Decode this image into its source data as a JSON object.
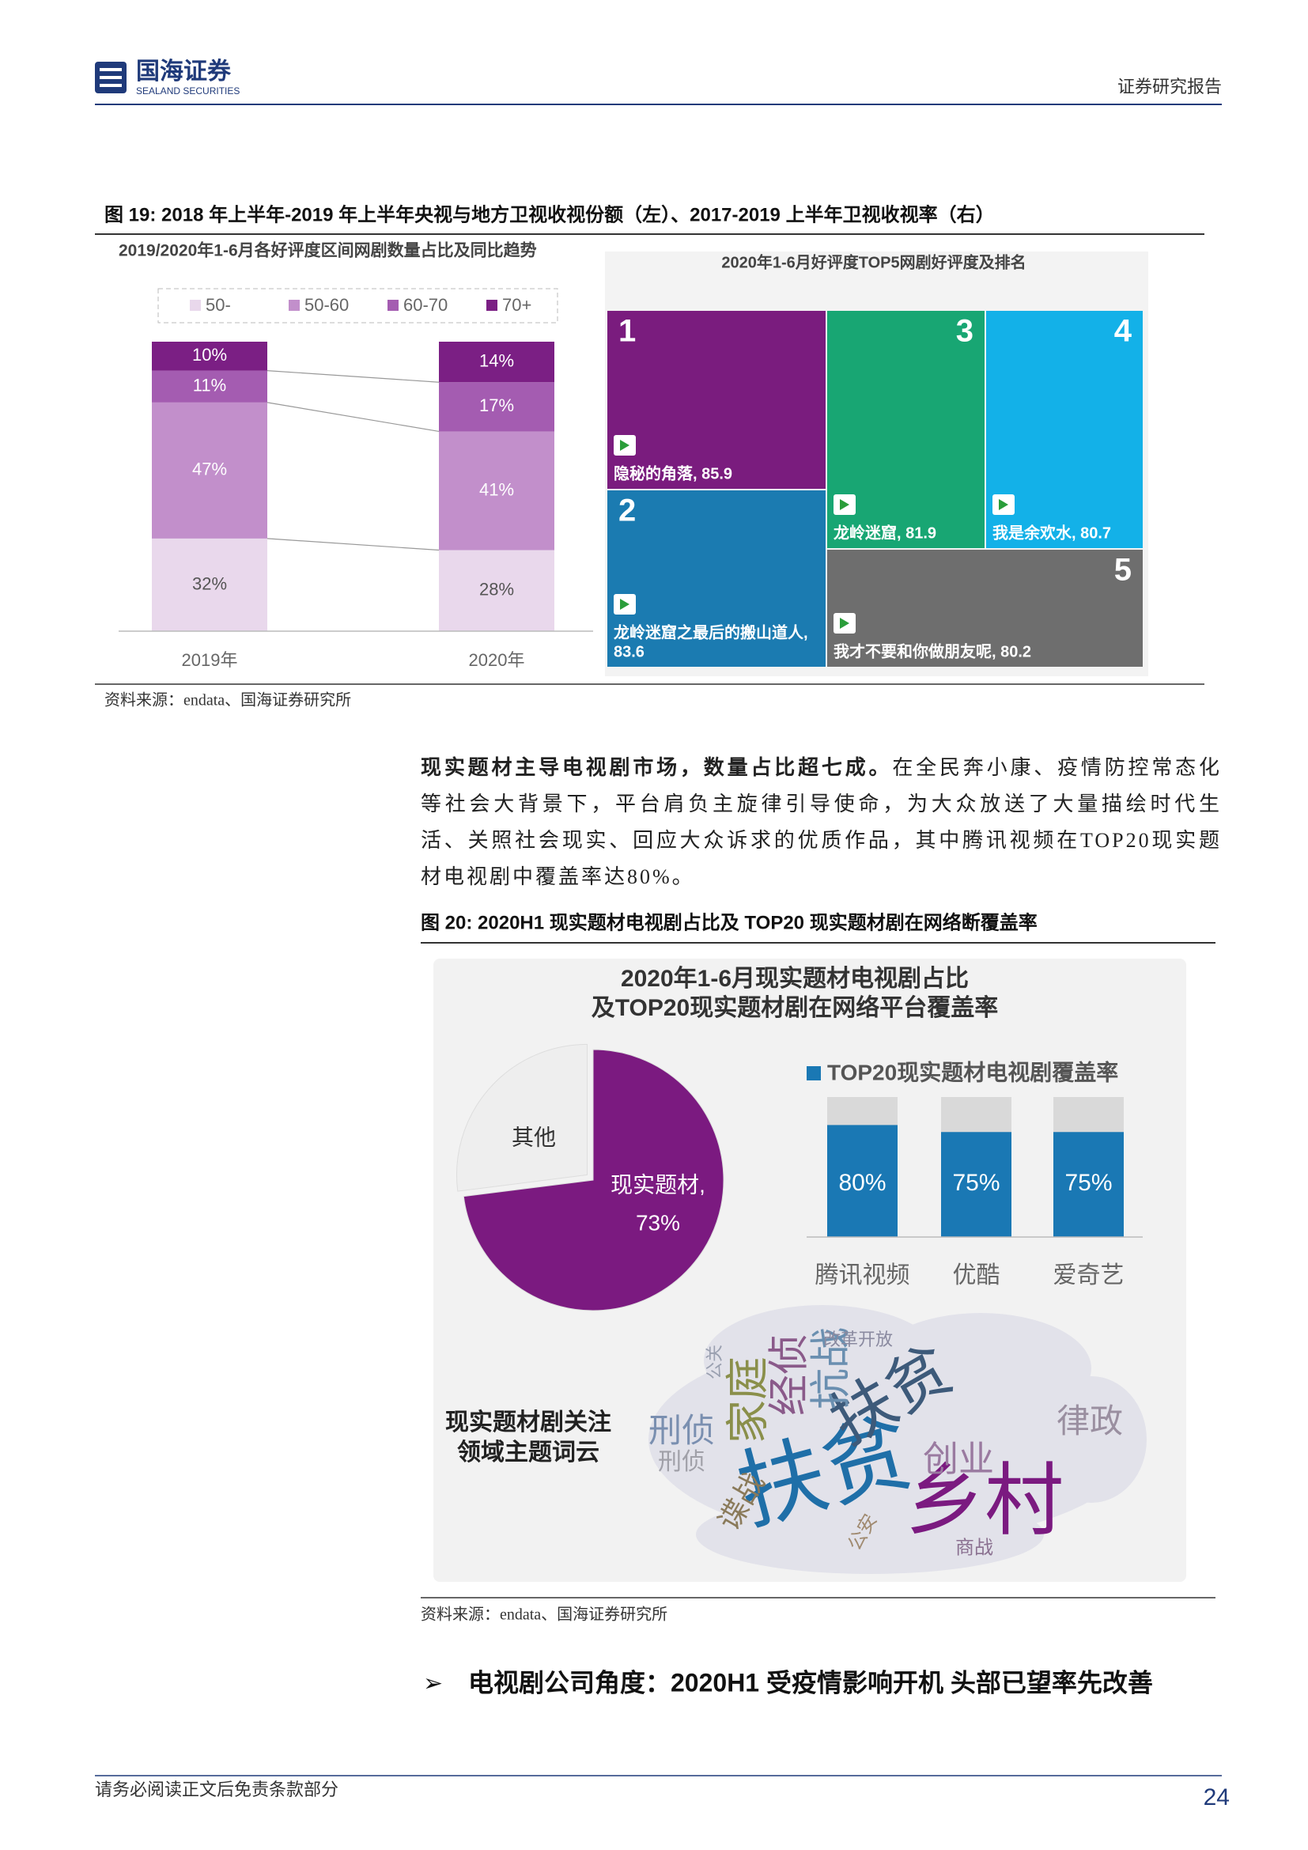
{
  "header": {
    "logo_cn": "国海证券",
    "logo_en": "SEALAND SECURITIES",
    "report_type": "证券研究报告"
  },
  "figure19": {
    "caption": "图 19: 2018 年上半年-2019 年上半年央视与地方卫视收视份额（左）、2017-2019 上半年卫视收视率（右）",
    "left_chart": {
      "type": "bar",
      "stacked": true,
      "title": "2019/2020年1-6月各好评度区间网剧数量占比及同比趋势",
      "categories": [
        "2019年",
        "2020年"
      ],
      "ylim": [
        0,
        100
      ],
      "series": [
        {
          "name": "50-",
          "color": "#e9d8ec",
          "values": [
            32,
            28
          ],
          "value_labels": [
            "32%",
            "28%"
          ]
        },
        {
          "name": "50-60",
          "color": "#c28fcb",
          "values": [
            47,
            41
          ],
          "value_labels": [
            "47%",
            "41%"
          ]
        },
        {
          "name": "60-70",
          "color": "#a45cb1",
          "values": [
            11,
            17
          ],
          "value_labels": [
            "11%",
            "17%"
          ]
        },
        {
          "name": "70+",
          "color": "#7b1f84",
          "values": [
            10,
            14
          ],
          "value_labels": [
            "10%",
            "14%"
          ]
        }
      ]
    },
    "treemap": {
      "title": "2020年1-6月好评度TOP5网剧好评度及排名",
      "items": [
        {
          "rank": 1,
          "label_lines": [
            "隐秘的角落, 85.9"
          ],
          "color": "#7a1c7e"
        },
        {
          "rank": 2,
          "label_lines": [
            "龙岭迷窟之最后的搬山道人,",
            "83.6"
          ],
          "color": "#1b7bb1"
        },
        {
          "rank": 3,
          "label_lines": [
            "龙岭迷窟, 81.9"
          ],
          "color": "#18a673"
        },
        {
          "rank": 4,
          "label_lines": [
            "我是余欢水, 80.7"
          ],
          "color": "#13b1e8"
        },
        {
          "rank": 5,
          "label_lines": [
            "我才不要和你做朋友呢, 80.2"
          ],
          "color": "#6e6e6e"
        }
      ]
    },
    "source": "资料来源：endata、国海证券研究所"
  },
  "paragraph": {
    "lead": "现实题材主导电视剧市场，数量占比超七成。",
    "text": "在全民奔小康、疫情防控常态化等社会大背景下，平台肩负主旋律引导使命，为大众放送了大量描绘时代生活、关照社会现实、回应大众诉求的优质作品，其中腾讯视频在TOP20现实题材电视剧中覆盖率达80%。"
  },
  "figure20": {
    "caption": "图 20: 2020H1 现实题材电视剧占比及 TOP20 现实题材剧在网络断覆盖率",
    "title_lines": [
      "2020年1-6月现实题材电视剧占比",
      "及TOP20现实题材剧在网络平台覆盖率"
    ],
    "pie": {
      "type": "pie",
      "slices": [
        {
          "label": "现实题材,",
          "value": 73,
          "value_label": "73%",
          "color": "#7b1a80"
        },
        {
          "label": "其他",
          "value": 27,
          "color": "#eeeeee"
        }
      ]
    },
    "bar": {
      "type": "bar",
      "legend": "TOP20现实题材电视剧覆盖率",
      "categories": [
        "腾讯视频",
        "优酷",
        "爱奇艺"
      ],
      "values": [
        80,
        75,
        75
      ],
      "value_labels": [
        "80%",
        "75%",
        "75%"
      ],
      "color": "#1a78b4",
      "background_color": "#d9d9d9",
      "ylim": [
        0,
        100
      ]
    },
    "word_cloud": {
      "label_lines": [
        "现实题材剧关注",
        "领域主题词云"
      ],
      "words": [
        {
          "text": "扶贫",
          "color": "#1f6fa8"
        },
        {
          "text": "乡村",
          "color": "#7b1a80"
        },
        {
          "text": "扶贫",
          "color": "#3d5a7a"
        },
        {
          "text": "家庭",
          "color": "#8a8f4a"
        },
        {
          "text": "经侦",
          "color": "#8a5a8a"
        },
        {
          "text": "抗战",
          "color": "#6a8fb0"
        },
        {
          "text": "刑侦",
          "color": "#7a8fb0"
        },
        {
          "text": "创业",
          "color": "#9a7aa0"
        },
        {
          "text": "律政",
          "color": "#9a8fa0"
        },
        {
          "text": "谍战",
          "color": "#8a7a5a"
        },
        {
          "text": "刑侦",
          "color": "#a0a0a8"
        },
        {
          "text": "改革开放",
          "color": "#8a8aa0"
        },
        {
          "text": "公关",
          "color": "#9aa0b0"
        },
        {
          "text": "商战",
          "color": "#8a7090"
        },
        {
          "text": "公安",
          "color": "#a08a70"
        }
      ]
    },
    "source": "资料来源：endata、国海证券研究所"
  },
  "section_heading": "电视剧公司角度：2020H1 受疫情影响开机 头部已望率先改善",
  "footer": {
    "disclaimer": "请务必阅读正文后免责条款部分",
    "page": 24
  }
}
